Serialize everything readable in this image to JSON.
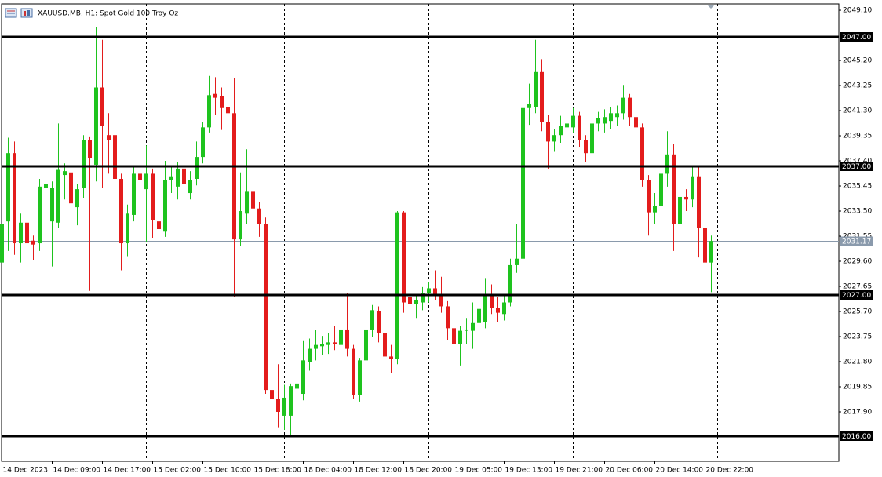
{
  "chart_data": {
    "type": "candlestick",
    "title": "XAUUSD.MB, H1:  Spot Gold 100 Troy Oz",
    "categories": [
      "14 Dec 2023",
      null,
      null,
      null,
      null,
      null,
      null,
      null,
      "14 Dec 09:00",
      null,
      null,
      null,
      null,
      null,
      null,
      null,
      "14 Dec 17:00",
      null,
      null,
      null,
      null,
      null,
      null,
      null,
      "15 Dec 02:00",
      null,
      null,
      null,
      null,
      null,
      null,
      null,
      "15 Dec 10:00",
      null,
      null,
      null,
      null,
      null,
      null,
      null,
      "15 Dec 18:00",
      null,
      null,
      null,
      null,
      null,
      null,
      null,
      "18 Dec 04:00",
      null,
      null,
      null,
      null,
      null,
      null,
      null,
      "18 Dec 12:00",
      null,
      null,
      null,
      null,
      null,
      null,
      null,
      "18 Dec 20:00",
      null,
      null,
      null,
      null,
      null,
      null,
      null,
      "19 Dec 05:00",
      null,
      null,
      null,
      null,
      null,
      null,
      null,
      "19 Dec 13:00",
      null,
      null,
      null,
      null,
      null,
      null,
      null,
      "19 Dec 21:00",
      null,
      null,
      null,
      null,
      null,
      null,
      null,
      "20 Dec 06:00",
      null,
      null,
      null,
      null,
      null,
      null,
      null,
      "20 Dec 14:00",
      null,
      null,
      null,
      null,
      null,
      null,
      null,
      "20 Dec 22:00",
      null
    ],
    "open": [
      2029.5,
      2032.7,
      2038,
      2031,
      2032.6,
      2031.2,
      2031,
      2035.3,
      2032.7,
      2032.6,
      2036.3,
      2036.5,
      2033.8,
      2035.3,
      2039,
      2037.1,
      2043.1,
      2039.4,
      2039.4,
      2036,
      2031,
      2033.2,
      2036.4,
      2035.2,
      2036.4,
      2032.7,
      2031.9,
      2035.9,
      2035.4,
      2036.8,
      2034.9,
      2036,
      2037.7,
      2040,
      2042.6,
      2042.4,
      2041.6,
      2041.1,
      2031.3,
      2033.3,
      2035,
      2033.7,
      2032.5,
      2019.6,
      2018.9,
      2017.6,
      2017.6,
      2019.7,
      2019.3,
      2021.8,
      2022.8,
      2023,
      2023.1,
      2023.3,
      2023.1,
      2024.3,
      2022.8,
      2019.2,
      2021.9,
      2024.3,
      2025.7,
      2024,
      2022.2,
      2022,
      2033.4,
      2026.8,
      2026.3,
      2026.4,
      2027.1,
      2027.5,
      2027,
      2026.1,
      2024.4,
      2023.2,
      2024.2,
      2024.2,
      2024.8,
      2024.9,
      2026.9,
      2026,
      2025.5,
      2026.4,
      2029.3,
      2029.8,
      2041.5,
      2041.6,
      2044.3,
      2040.4,
      2038.9,
      2039.4,
      2040,
      2040,
      2040.9,
      2039,
      2038,
      2040.3,
      2040.3,
      2040.5,
      2040.8,
      2041.1,
      2042.3,
      2040.8,
      2040,
      2035.9,
      2033.4,
      2033.9,
      2036.4,
      2037.9,
      2032.5,
      2034.6,
      2034.4,
      2036.2,
      2032.2,
      2029.5
    ],
    "high": [
      2033,
      2039.2,
      2038.9,
      2033.3,
      2033.1,
      2031.6,
      2036,
      2037.2,
      2035.8,
      2040.3,
      2037.2,
      2036.8,
      2035.6,
      2039.4,
      2039.3,
      2047.8,
      2046.8,
      2041.1,
      2039.8,
      2036.4,
      2034,
      2036.9,
      2037.1,
      2038.6,
      2036.8,
      2033.4,
      2037.4,
      2036.9,
      2037.3,
      2037.1,
      2036.6,
      2038.9,
      2040.4,
      2044,
      2043.9,
      2043.1,
      2044.7,
      2043.8,
      2036.5,
      2038.3,
      2035.5,
      2034.2,
      2033,
      2020.6,
      2021.6,
      2020,
      2020.1,
      2021,
      2023.4,
      2023.6,
      2024.3,
      2023.8,
      2024,
      2024.6,
      2026.1,
      2027.1,
      2023.1,
      2022.1,
      2024.6,
      2026.2,
      2026.1,
      2024.5,
      2023.1,
      2033.5,
      2033.5,
      2027.7,
      2027,
      2027.6,
      2028,
      2028.9,
      2028.4,
      2026.5,
      2025,
      2024.6,
      2025.2,
      2026.4,
      2027,
      2028.3,
      2027.8,
      2026.8,
      2027,
      2029.8,
      2032.5,
      2042.3,
      2043.4,
      2046.8,
      2045.3,
      2041,
      2039.9,
      2040.9,
      2040.6,
      2041.5,
      2041.2,
      2039.4,
      2040.7,
      2041.2,
      2041.4,
      2041.6,
      2041.7,
      2043.3,
      2042.6,
      2041.3,
      2040.3,
      2036.3,
      2034.9,
      2036.8,
      2039.7,
      2038.7,
      2035.3,
      2035.2,
      2037,
      2036.9,
      2033.7,
      2031.6
    ],
    "low": [
      2027.8,
      2030.4,
      2030.1,
      2029.5,
      2029.8,
      2029.7,
      2030.4,
      2033.5,
      2029.2,
      2032.2,
      2034.4,
      2033,
      2032.4,
      2034.5,
      2027.3,
      2035.8,
      2035.3,
      2036.4,
      2034.8,
      2028.9,
      2030,
      2032.7,
      2033.3,
      2031.1,
      2031.4,
      2031.5,
      2031.5,
      2034.9,
      2034.4,
      2034.4,
      2034.4,
      2035.5,
      2037.2,
      2039.6,
      2041,
      2039.8,
      2040.4,
      2026.8,
      2030.8,
      2032.5,
      2031.8,
      2031.5,
      2019.3,
      2015.5,
      2016.7,
      2016.5,
      2016.1,
      2019.2,
      2018.8,
      2021.1,
      2021.9,
      2022.3,
      2022.4,
      2022.7,
      2022.5,
      2022.2,
      2018.9,
      2018.7,
      2021.4,
      2023.7,
      2023.3,
      2020.3,
      2020.9,
      2021.6,
      2025.6,
      2025.6,
      2025.2,
      2025.8,
      2026.4,
      2026.6,
      2025.6,
      2023.5,
      2022.4,
      2021.5,
      2023.2,
      2022.8,
      2023.8,
      2024.4,
      2025.5,
      2024.9,
      2025,
      2026.1,
      2028.7,
      2029.4,
      2040.2,
      2041.1,
      2039.7,
      2036.8,
      2038.1,
      2038.8,
      2039.3,
      2039.6,
      2038.5,
      2037.3,
      2036.6,
      2039.7,
      2039.6,
      2039.9,
      2040.1,
      2040.6,
      2040.1,
      2039.3,
      2035.4,
      2031.6,
      2032.5,
      2029.5,
      2035.4,
      2030.4,
      2031.6,
      2033.5,
      2033.8,
      2029.9,
      2029.3,
      2027.2
    ],
    "close": [
      2032.5,
      2038,
      2031,
      2032.6,
      2031,
      2030.9,
      2035.4,
      2035.6,
      2035.3,
      2036.7,
      2036.6,
      2034.1,
      2035.2,
      2039,
      2037.6,
      2043.1,
      2040.1,
      2039,
      2036,
      2031,
      2033.3,
      2036.4,
      2035.9,
      2036.4,
      2032.8,
      2032.1,
      2035.9,
      2036.2,
      2036.8,
      2035.6,
      2035.9,
      2037.7,
      2040,
      2042.5,
      2042.3,
      2041.5,
      2041.1,
      2031.3,
      2033.5,
      2035,
      2033.7,
      2032.5,
      2019.6,
      2018.9,
      2017.9,
      2019,
      2019.9,
      2020.1,
      2021.9,
      2022.8,
      2023.1,
      2023.2,
      2023.3,
      2023.2,
      2024.3,
      2022.8,
      2019.2,
      2021.9,
      2024.3,
      2025.8,
      2024,
      2022.2,
      2022,
      2033.4,
      2026.4,
      2026.3,
      2026.6,
      2027.1,
      2027.5,
      2027,
      2026.1,
      2024.4,
      2023.2,
      2024.2,
      2024.3,
      2024.8,
      2025.9,
      2026.9,
      2026,
      2025.6,
      2026.4,
      2029.3,
      2029.8,
      2041.5,
      2041.8,
      2044.3,
      2040.4,
      2038.9,
      2039.4,
      2040.1,
      2040.3,
      2040.9,
      2039,
      2038,
      2040.3,
      2040.7,
      2040.8,
      2041.1,
      2041.1,
      2042.3,
      2040.8,
      2040,
      2035.9,
      2033.4,
      2033.9,
      2036.4,
      2037.9,
      2032.5,
      2034.6,
      2034.4,
      2036.2,
      2032.2,
      2029.5,
      2031.17
    ],
    "up_color": "#1ec31e",
    "down_color": "#e31c1c",
    "ylim": [
      2014.06,
      2049.59
    ],
    "yticks": [
      {
        "value": 2049.1,
        "label": "2049.10"
      },
      {
        "value": 2045.2,
        "label": "2045.20"
      },
      {
        "value": 2043.25,
        "label": "2043.25"
      },
      {
        "value": 2041.3,
        "label": "2041.30"
      },
      {
        "value": 2039.35,
        "label": "2039.35"
      },
      {
        "value": 2037.4,
        "label": "2037.40"
      },
      {
        "value": 2035.45,
        "label": "2035.45"
      },
      {
        "value": 2033.5,
        "label": "2033.50"
      },
      {
        "value": 2031.55,
        "label": "2031.55"
      },
      {
        "value": 2029.6,
        "label": "2029.60"
      },
      {
        "value": 2027.65,
        "label": "2027.65"
      },
      {
        "value": 2025.7,
        "label": "2025.70"
      },
      {
        "value": 2023.75,
        "label": "2023.75"
      },
      {
        "value": 2021.8,
        "label": "2021.80"
      },
      {
        "value": 2019.85,
        "label": "2019.85"
      },
      {
        "value": 2017.9,
        "label": "2017.90"
      }
    ],
    "levels": [
      {
        "value": 2047,
        "label": "2047.00"
      },
      {
        "value": 2037,
        "label": "2037.00"
      },
      {
        "value": 2027,
        "label": "2027.00"
      },
      {
        "value": 2016,
        "label": "2016.00"
      }
    ],
    "last_price": {
      "value": 2031.17,
      "label": "2031.17"
    }
  }
}
